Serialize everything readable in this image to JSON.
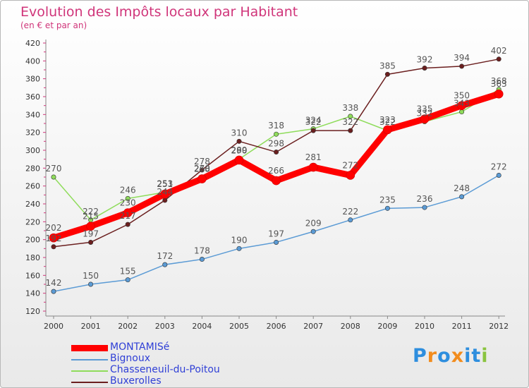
{
  "chart_data": {
    "type": "line",
    "title": "Evolution des Impôts locaux par Habitant",
    "subtitle": "(en € et par an)",
    "xlabel": "",
    "ylabel": "",
    "ylim": [
      120,
      420
    ],
    "yticks": [
      120,
      140,
      160,
      180,
      200,
      220,
      240,
      260,
      280,
      300,
      320,
      340,
      360,
      380,
      400,
      420
    ],
    "categories": [
      "2000",
      "2001",
      "2002",
      "2003",
      "2004",
      "2005",
      "2006",
      "2007",
      "2008",
      "2009",
      "2010",
      "2011",
      "2012"
    ],
    "series": [
      {
        "name": "MONTAMISé",
        "color": "#ff0000",
        "emphasis": true,
        "values": [
          202,
          215,
          230,
          251,
          268,
          289,
          266,
          281,
          272,
          323,
          335,
          350,
          363
        ]
      },
      {
        "name": "Bignoux",
        "color": "#5b9bd5",
        "values": [
          142,
          150,
          155,
          172,
          178,
          190,
          197,
          209,
          222,
          235,
          236,
          248,
          272
        ]
      },
      {
        "name": "Chasseneuil-du-Poitou",
        "color": "#8fdc5b",
        "values": [
          270,
          222,
          246,
          253,
          270,
          290,
          318,
          324,
          338,
          322,
          332,
          343,
          368
        ]
      },
      {
        "name": "Buxerolles",
        "color": "#6b1f1f",
        "values": [
          192,
          197,
          217,
          244,
          278,
          310,
          298,
          322,
          322,
          385,
          392,
          394,
          402
        ]
      }
    ],
    "legend_position": "bottom-left",
    "grid": false
  },
  "logo": {
    "text": "Proxiti",
    "colors": [
      "#2e8ede",
      "#f28c1d",
      "#2e8ede",
      "#f28c1d",
      "#2e8ede",
      "#2e8ede",
      "#8ac43f"
    ]
  }
}
